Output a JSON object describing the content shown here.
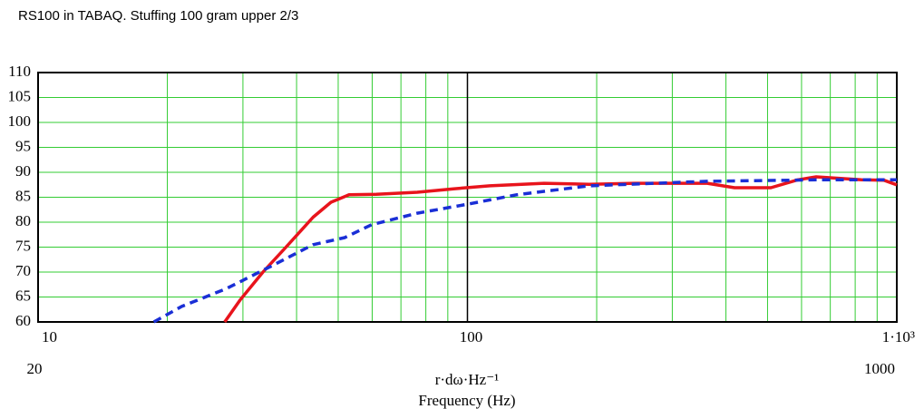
{
  "chart_data": {
    "type": "line",
    "title": "RS100 in TABAQ. Stuffing 100 gram upper 2/3",
    "x_unit_label": "r·dω·Hz⁻¹",
    "x_label": "Frequency (Hz)",
    "range_labels": [
      "20",
      "1000"
    ],
    "xlim": [
      10,
      1000
    ],
    "log_x": true,
    "xticks": [
      10,
      100,
      {
        "value": 1000,
        "label": "1·10³"
      }
    ],
    "ylim": [
      60,
      110
    ],
    "yticks": [
      60,
      65,
      70,
      75,
      80,
      85,
      90,
      95,
      100,
      105,
      110
    ],
    "grid": true,
    "grid_color": "#33cc33",
    "series": [
      {
        "color": "#e8141c",
        "dash": false,
        "x": [
          27.2,
          29.6,
          33.4,
          37.8,
          43.7,
          48.1,
          53,
          61.3,
          76.4,
          92.8,
          112.7,
          150.8,
          192,
          245,
          362,
          419,
          509,
          588,
          649,
          828,
          934,
          1000
        ],
        "values": [
          60,
          64.5,
          70,
          75,
          81,
          84,
          85.5,
          85.6,
          86,
          86.7,
          87.3,
          87.8,
          87.6,
          87.8,
          87.8,
          86.9,
          86.9,
          88.5,
          89.1,
          88.5,
          88.4,
          87.5
        ]
      },
      {
        "color": "#1a2fd6",
        "dash": true,
        "x": [
          18.6,
          21.6,
          27.5,
          35.1,
          43.7,
          51.8,
          59.8,
          76.4,
          100,
          130,
          192,
          362,
          649,
          1000
        ],
        "values": [
          60,
          63.1,
          66.7,
          71.3,
          75.5,
          76.9,
          79.5,
          81.8,
          83.6,
          85.5,
          87.3,
          88.2,
          88.5,
          88.5
        ]
      }
    ]
  }
}
